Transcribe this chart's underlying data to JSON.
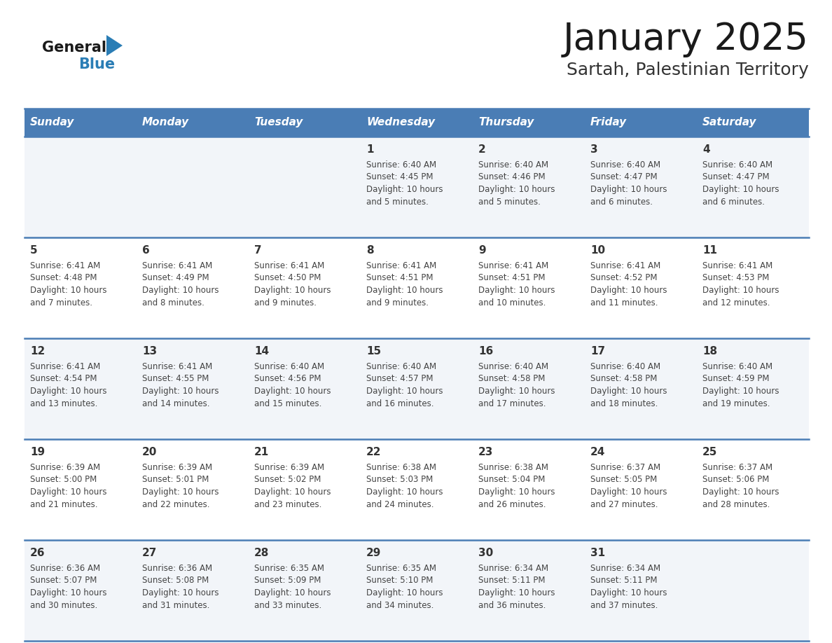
{
  "title": "January 2025",
  "subtitle": "Sartah, Palestinian Territory",
  "days_of_week": [
    "Sunday",
    "Monday",
    "Tuesday",
    "Wednesday",
    "Thursday",
    "Friday",
    "Saturday"
  ],
  "header_bg": "#4a7db5",
  "header_text_color": "#ffffff",
  "row_bg_even": "#f2f5f9",
  "row_bg_odd": "#ffffff",
  "day_number_color": "#333333",
  "info_text_color": "#444444",
  "border_color": "#4a7db5",
  "title_color": "#1a1a1a",
  "subtitle_color": "#333333",
  "logo_general_color": "#1a1a1a",
  "logo_blue_color": "#2a7db5",
  "calendar": [
    [
      null,
      null,
      null,
      {
        "day": 1,
        "sunrise": "6:40 AM",
        "sunset": "4:45 PM",
        "daylight": "10 hours and 5 minutes."
      },
      {
        "day": 2,
        "sunrise": "6:40 AM",
        "sunset": "4:46 PM",
        "daylight": "10 hours and 5 minutes."
      },
      {
        "day": 3,
        "sunrise": "6:40 AM",
        "sunset": "4:47 PM",
        "daylight": "10 hours and 6 minutes."
      },
      {
        "day": 4,
        "sunrise": "6:40 AM",
        "sunset": "4:47 PM",
        "daylight": "10 hours and 6 minutes."
      }
    ],
    [
      {
        "day": 5,
        "sunrise": "6:41 AM",
        "sunset": "4:48 PM",
        "daylight": "10 hours and 7 minutes."
      },
      {
        "day": 6,
        "sunrise": "6:41 AM",
        "sunset": "4:49 PM",
        "daylight": "10 hours and 8 minutes."
      },
      {
        "day": 7,
        "sunrise": "6:41 AM",
        "sunset": "4:50 PM",
        "daylight": "10 hours and 9 minutes."
      },
      {
        "day": 8,
        "sunrise": "6:41 AM",
        "sunset": "4:51 PM",
        "daylight": "10 hours and 9 minutes."
      },
      {
        "day": 9,
        "sunrise": "6:41 AM",
        "sunset": "4:51 PM",
        "daylight": "10 hours and 10 minutes."
      },
      {
        "day": 10,
        "sunrise": "6:41 AM",
        "sunset": "4:52 PM",
        "daylight": "10 hours and 11 minutes."
      },
      {
        "day": 11,
        "sunrise": "6:41 AM",
        "sunset": "4:53 PM",
        "daylight": "10 hours and 12 minutes."
      }
    ],
    [
      {
        "day": 12,
        "sunrise": "6:41 AM",
        "sunset": "4:54 PM",
        "daylight": "10 hours and 13 minutes."
      },
      {
        "day": 13,
        "sunrise": "6:41 AM",
        "sunset": "4:55 PM",
        "daylight": "10 hours and 14 minutes."
      },
      {
        "day": 14,
        "sunrise": "6:40 AM",
        "sunset": "4:56 PM",
        "daylight": "10 hours and 15 minutes."
      },
      {
        "day": 15,
        "sunrise": "6:40 AM",
        "sunset": "4:57 PM",
        "daylight": "10 hours and 16 minutes."
      },
      {
        "day": 16,
        "sunrise": "6:40 AM",
        "sunset": "4:58 PM",
        "daylight": "10 hours and 17 minutes."
      },
      {
        "day": 17,
        "sunrise": "6:40 AM",
        "sunset": "4:58 PM",
        "daylight": "10 hours and 18 minutes."
      },
      {
        "day": 18,
        "sunrise": "6:40 AM",
        "sunset": "4:59 PM",
        "daylight": "10 hours and 19 minutes."
      }
    ],
    [
      {
        "day": 19,
        "sunrise": "6:39 AM",
        "sunset": "5:00 PM",
        "daylight": "10 hours and 21 minutes."
      },
      {
        "day": 20,
        "sunrise": "6:39 AM",
        "sunset": "5:01 PM",
        "daylight": "10 hours and 22 minutes."
      },
      {
        "day": 21,
        "sunrise": "6:39 AM",
        "sunset": "5:02 PM",
        "daylight": "10 hours and 23 minutes."
      },
      {
        "day": 22,
        "sunrise": "6:38 AM",
        "sunset": "5:03 PM",
        "daylight": "10 hours and 24 minutes."
      },
      {
        "day": 23,
        "sunrise": "6:38 AM",
        "sunset": "5:04 PM",
        "daylight": "10 hours and 26 minutes."
      },
      {
        "day": 24,
        "sunrise": "6:37 AM",
        "sunset": "5:05 PM",
        "daylight": "10 hours and 27 minutes."
      },
      {
        "day": 25,
        "sunrise": "6:37 AM",
        "sunset": "5:06 PM",
        "daylight": "10 hours and 28 minutes."
      }
    ],
    [
      {
        "day": 26,
        "sunrise": "6:36 AM",
        "sunset": "5:07 PM",
        "daylight": "10 hours and 30 minutes."
      },
      {
        "day": 27,
        "sunrise": "6:36 AM",
        "sunset": "5:08 PM",
        "daylight": "10 hours and 31 minutes."
      },
      {
        "day": 28,
        "sunrise": "6:35 AM",
        "sunset": "5:09 PM",
        "daylight": "10 hours and 33 minutes."
      },
      {
        "day": 29,
        "sunrise": "6:35 AM",
        "sunset": "5:10 PM",
        "daylight": "10 hours and 34 minutes."
      },
      {
        "day": 30,
        "sunrise": "6:34 AM",
        "sunset": "5:11 PM",
        "daylight": "10 hours and 36 minutes."
      },
      {
        "day": 31,
        "sunrise": "6:34 AM",
        "sunset": "5:11 PM",
        "daylight": "10 hours and 37 minutes."
      },
      null
    ]
  ]
}
